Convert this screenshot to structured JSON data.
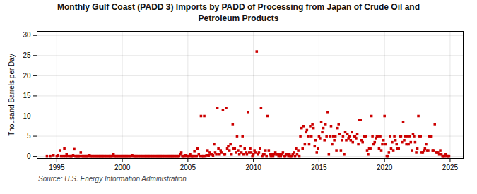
{
  "chart_data": {
    "type": "scatter",
    "title": "Monthly Gulf Coast (PADD 3) Imports by PADD of Processing from Japan of Crude Oil and\nPetroleum Products",
    "ylabel": "Thousand Barrels per Day",
    "annotation": "Source: U.S. Energy Information Administration",
    "color": "#cc0000",
    "marker": "square",
    "grid": true,
    "xlim": [
      1993.5,
      2026.0
    ],
    "ylim": [
      -0.5,
      31
    ],
    "xticks": [
      1995,
      2000,
      2005,
      2010,
      2015,
      2020,
      2025
    ],
    "yticks": [
      0,
      5,
      10,
      15,
      20,
      25,
      30
    ],
    "x": [
      1994.25,
      1994.5,
      1994.75,
      1995,
      1995.08,
      1995.25,
      1995.33,
      1995.5,
      1995.58,
      1995.67,
      1995.75,
      1995.83,
      1996,
      1996.08,
      1996.17,
      1996.25,
      1996.33,
      1996.42,
      1996.5,
      1996.58,
      1996.67,
      1996.75,
      1996.83,
      1996.92,
      1997,
      1997.08,
      1997.17,
      1997.25,
      1997.33,
      1997.42,
      1997.5,
      1997.58,
      1997.67,
      1997.75,
      1997.83,
      1997.92,
      1998,
      1998.08,
      1998.17,
      1998.25,
      1998.33,
      1998.42,
      1998.5,
      1998.58,
      1998.67,
      1998.75,
      1998.83,
      1998.92,
      1999,
      1999.08,
      1999.17,
      1999.25,
      1999.33,
      1999.42,
      1999.5,
      1999.58,
      1999.67,
      1999.75,
      1999.83,
      1999.92,
      2000,
      2000.08,
      2000.17,
      2000.25,
      2000.33,
      2000.42,
      2000.5,
      2000.58,
      2000.67,
      2000.75,
      2000.83,
      2000.92,
      2001,
      2001.08,
      2001.17,
      2001.25,
      2001.33,
      2001.42,
      2001.5,
      2001.58,
      2001.67,
      2001.75,
      2001.83,
      2001.92,
      2002,
      2002.08,
      2002.17,
      2002.25,
      2002.33,
      2002.42,
      2002.5,
      2002.58,
      2002.67,
      2002.75,
      2002.83,
      2002.92,
      2003,
      2003.08,
      2003.17,
      2003.25,
      2003.33,
      2003.42,
      2003.5,
      2003.58,
      2003.67,
      2003.75,
      2003.83,
      2003.92,
      2004,
      2004.08,
      2004.17,
      2004.25,
      2004.33,
      2004.42,
      2004.5,
      2004.58,
      2004.67,
      2004.75,
      2004.83,
      2004.92,
      2005,
      2005.08,
      2005.17,
      2005.25,
      2005.33,
      2005.42,
      2005.5,
      2005.58,
      2005.67,
      2005.75,
      2005.83,
      2005.92,
      2006,
      2006.08,
      2006.17,
      2006.25,
      2006.33,
      2006.42,
      2006.5,
      2006.58,
      2006.67,
      2006.75,
      2006.83,
      2006.92,
      2007,
      2007.08,
      2007.17,
      2007.25,
      2007.33,
      2007.42,
      2007.5,
      2007.58,
      2007.67,
      2007.75,
      2007.83,
      2007.92,
      2008,
      2008.08,
      2008.17,
      2008.25,
      2008.33,
      2008.42,
      2008.5,
      2008.58,
      2008.67,
      2008.75,
      2008.83,
      2008.92,
      2009,
      2009.08,
      2009.17,
      2009.25,
      2009.33,
      2009.42,
      2009.5,
      2009.58,
      2009.67,
      2009.75,
      2009.83,
      2009.92,
      2010,
      2010.08,
      2010.17,
      2010.25,
      2010.33,
      2010.42,
      2010.5,
      2010.58,
      2010.67,
      2010.75,
      2010.83,
      2010.92,
      2011,
      2011.08,
      2011.17,
      2011.25,
      2011.33,
      2011.42,
      2011.5,
      2011.58,
      2011.67,
      2011.75,
      2011.83,
      2011.92,
      2012,
      2012.08,
      2012.17,
      2012.25,
      2012.33,
      2012.42,
      2012.5,
      2012.58,
      2012.67,
      2012.75,
      2012.83,
      2012.92,
      2013,
      2013.08,
      2013.17,
      2013.25,
      2013.33,
      2013.42,
      2013.5,
      2013.58,
      2013.67,
      2013.75,
      2013.83,
      2013.92,
      2014,
      2014.08,
      2014.17,
      2014.25,
      2014.33,
      2014.42,
      2014.5,
      2014.58,
      2014.67,
      2014.75,
      2014.83,
      2014.92,
      2015,
      2015.08,
      2015.17,
      2015.25,
      2015.33,
      2015.42,
      2015.5,
      2015.58,
      2015.67,
      2015.75,
      2015.83,
      2015.92,
      2016,
      2016.08,
      2016.17,
      2016.25,
      2016.33,
      2016.42,
      2016.5,
      2016.58,
      2016.67,
      2016.75,
      2016.83,
      2016.92,
      2017,
      2017.08,
      2017.17,
      2017.25,
      2017.33,
      2017.42,
      2017.5,
      2017.58,
      2017.67,
      2017.75,
      2017.83,
      2017.92,
      2018,
      2018.08,
      2018.17,
      2018.25,
      2018.33,
      2018.42,
      2018.5,
      2018.58,
      2018.67,
      2018.75,
      2018.83,
      2018.92,
      2019,
      2019.08,
      2019.17,
      2019.25,
      2019.33,
      2019.42,
      2019.5,
      2019.58,
      2019.67,
      2019.75,
      2019.83,
      2019.92,
      2020,
      2020.08,
      2020.17,
      2020.25,
      2020.33,
      2020.42,
      2020.5,
      2020.58,
      2020.67,
      2020.75,
      2020.83,
      2020.92,
      2021,
      2021.08,
      2021.17,
      2021.25,
      2021.33,
      2021.42,
      2021.5,
      2021.58,
      2021.67,
      2021.75,
      2021.83,
      2021.92,
      2022,
      2022.08,
      2022.17,
      2022.25,
      2022.33,
      2022.42,
      2022.5,
      2022.58,
      2022.67,
      2022.75,
      2022.83,
      2022.92,
      2023,
      2023.08,
      2023.17,
      2023.25,
      2023.33,
      2023.42,
      2023.5,
      2023.58,
      2023.67,
      2023.75,
      2023.83,
      2023.92,
      2024,
      2024.08,
      2024.17,
      2024.25,
      2024.33,
      2024.42,
      2024.5,
      2024.58,
      2024.67,
      2024.75,
      2024.83,
      2024.92
    ],
    "values": [
      0,
      0,
      0.3,
      0,
      0.2,
      1.5,
      0,
      0,
      2,
      0,
      0.5,
      0,
      0,
      0,
      0,
      0.2,
      1.8,
      0,
      0,
      0,
      0,
      0,
      1,
      0,
      0,
      0,
      0,
      0,
      0,
      0,
      0.2,
      0,
      0,
      0,
      0,
      0,
      0,
      0,
      0,
      0,
      0,
      0,
      0,
      0,
      0,
      0,
      0,
      0,
      0,
      0,
      0,
      0,
      0.5,
      0,
      0,
      0,
      0,
      0,
      0,
      0,
      0,
      0,
      0,
      0,
      0,
      0,
      0,
      0,
      0,
      0.3,
      0,
      0,
      0,
      0,
      0,
      0,
      0,
      0,
      0,
      0,
      0,
      0,
      0,
      0,
      0,
      0,
      0,
      0,
      0,
      0,
      0,
      0,
      0,
      0,
      0,
      0,
      0,
      0,
      0,
      0,
      0,
      0,
      0,
      0,
      0,
      0,
      0,
      0,
      0,
      0,
      0,
      0,
      0,
      0.5,
      1,
      0,
      0,
      0,
      0.2,
      0,
      0,
      0,
      0.5,
      0,
      0,
      0,
      1.2,
      0,
      0,
      2,
      0.5,
      0,
      10,
      0,
      0,
      10,
      0,
      0.3,
      1.5,
      0.2,
      1,
      0.5,
      0.5,
      0.2,
      3,
      1,
      0.5,
      12,
      2,
      0.5,
      1.5,
      1,
      11.5,
      0.5,
      0.5,
      12,
      2,
      2.5,
      1.5,
      3,
      0.5,
      8,
      2,
      2,
      1,
      5,
      1.5,
      0.5,
      2.5,
      1,
      5,
      0.5,
      2,
      1,
      0.5,
      11,
      1,
      2,
      1,
      0,
      0.5,
      1.5,
      1,
      26,
      0.5,
      1,
      2,
      12,
      0,
      0.5,
      0.5,
      1.5,
      0,
      10,
      1.5,
      0.5,
      0,
      0.5,
      0,
      0.5,
      1,
      0.5,
      0.5,
      0,
      0.5,
      0,
      0.5,
      1,
      0,
      0,
      0.5,
      0.5,
      0,
      0.5,
      0,
      0,
      0.5,
      1,
      0,
      2,
      0.5,
      1.5,
      0,
      5,
      7,
      2,
      7.5,
      3,
      6,
      6.5,
      5,
      3,
      7.5,
      5,
      8,
      7,
      2.5,
      4,
      1,
      2,
      5,
      4.5,
      8.5,
      6,
      7,
      4,
      8,
      5,
      11,
      0.5,
      5,
      7.5,
      3,
      5,
      4,
      5,
      1.5,
      7,
      8,
      5.5,
      1.5,
      4,
      5,
      0.5,
      6,
      4,
      5.5,
      4.5,
      5,
      4,
      6,
      3.5,
      5,
      5,
      4.5,
      5.5,
      3,
      9,
      9,
      4,
      3.5,
      5,
      5,
      5,
      1.5,
      0.5,
      2,
      2,
      10,
      5,
      3,
      3.5,
      4.5,
      5,
      5,
      2,
      5,
      1.5,
      3,
      4,
      10,
      3,
      0,
      0,
      1,
      5,
      2,
      3.5,
      1.5,
      5,
      4,
      3,
      2,
      2,
      5,
      5,
      3.5,
      8.5,
      4,
      5,
      3,
      5,
      3,
      5,
      3.5,
      1.5,
      5.5,
      5,
      3.5,
      1,
      2,
      10,
      5,
      5,
      1,
      1,
      1.5,
      2,
      3,
      1.5,
      1.5,
      5,
      5,
      5,
      1.5,
      1.5,
      8,
      1,
      1,
      1,
      0.5,
      1.5,
      0.5,
      0,
      0,
      0,
      0.5,
      0,
      0,
      0
    ]
  }
}
